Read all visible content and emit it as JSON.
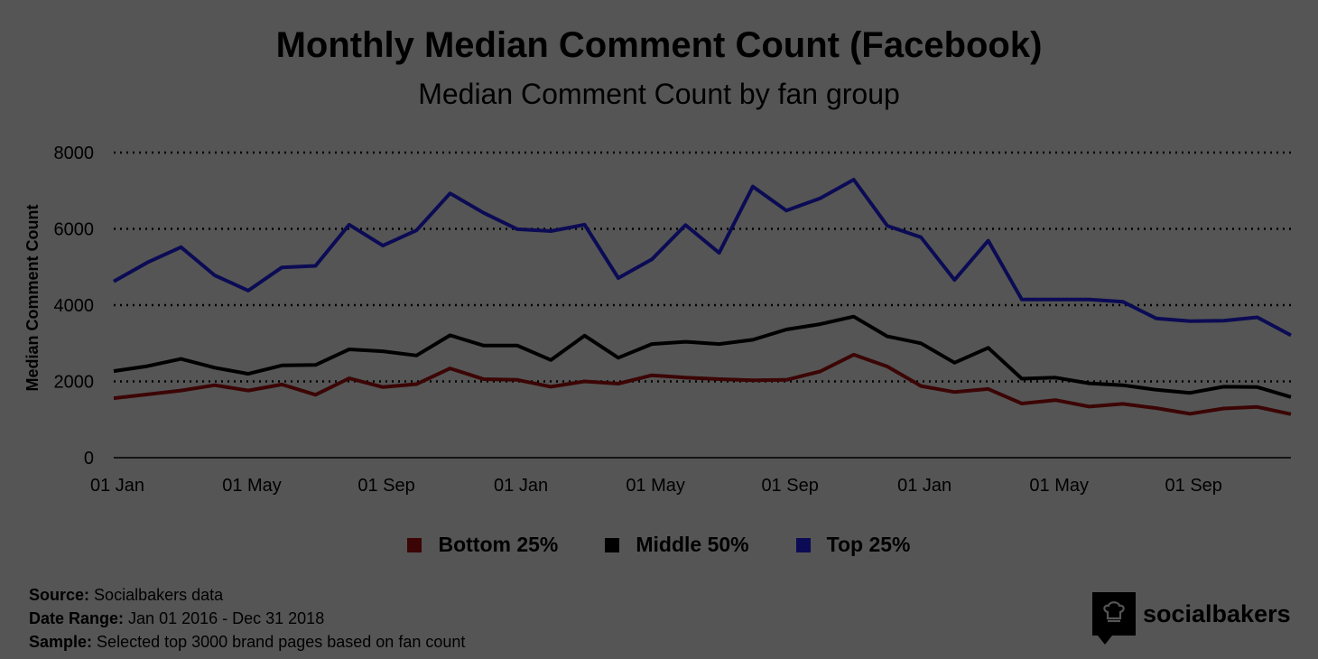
{
  "header": {
    "title": "Monthly Median Comment Count (Facebook)",
    "subtitle": "Median Comment Count by fan group"
  },
  "chart_data": {
    "type": "line",
    "title": "Monthly Median Comment Count (Facebook)",
    "subtitle": "Median Comment Count by fan group",
    "xlabel": "",
    "ylabel": "Median Comment Count",
    "ylim": [
      0,
      8000
    ],
    "yticks": [
      0,
      2000,
      4000,
      6000,
      8000
    ],
    "grid": "horizontal dotted",
    "legend_position": "bottom",
    "x_tick_labels": [
      "01 Jan",
      "01 May",
      "01 Sep",
      "01 Jan",
      "01 May",
      "01 Sep",
      "01 Jan",
      "01 May",
      "01 Sep"
    ],
    "x_tick_indices": [
      0,
      4,
      8,
      12,
      16,
      20,
      24,
      28,
      32
    ],
    "x": [
      "2016-01",
      "2016-02",
      "2016-03",
      "2016-04",
      "2016-05",
      "2016-06",
      "2016-07",
      "2016-08",
      "2016-09",
      "2016-10",
      "2016-11",
      "2016-12",
      "2017-01",
      "2017-02",
      "2017-03",
      "2017-04",
      "2017-05",
      "2017-06",
      "2017-07",
      "2017-08",
      "2017-09",
      "2017-10",
      "2017-11",
      "2017-12",
      "2018-01",
      "2018-02",
      "2018-03",
      "2018-04",
      "2018-05",
      "2018-06",
      "2018-07",
      "2018-08",
      "2018-09",
      "2018-10",
      "2018-11",
      "2018-12"
    ],
    "series": [
      {
        "name": "Bottom 25%",
        "color": "#3c0505",
        "values": [
          1560,
          1660,
          1760,
          1900,
          1760,
          1920,
          1650,
          2080,
          1850,
          1930,
          2340,
          2060,
          2040,
          1860,
          2000,
          1940,
          2160,
          2100,
          2060,
          2030,
          2040,
          2260,
          2700,
          2390,
          1880,
          1720,
          1800,
          1420,
          1510,
          1340,
          1410,
          1300,
          1150,
          1290,
          1330,
          1140
        ]
      },
      {
        "name": "Middle 50%",
        "color": "#000000",
        "values": [
          2270,
          2400,
          2590,
          2360,
          2200,
          2420,
          2430,
          2840,
          2790,
          2680,
          3210,
          2940,
          2940,
          2560,
          3200,
          2620,
          2980,
          3040,
          2980,
          3090,
          3360,
          3500,
          3700,
          3180,
          3000,
          2490,
          2880,
          2070,
          2100,
          1950,
          1900,
          1780,
          1700,
          1860,
          1850,
          1590
        ]
      },
      {
        "name": "Top 25%",
        "color": "#0b0b55",
        "values": [
          4620,
          5120,
          5520,
          4780,
          4380,
          4990,
          5030,
          6110,
          5560,
          5960,
          6930,
          6420,
          5990,
          5940,
          6110,
          4710,
          5200,
          6100,
          5370,
          7110,
          6480,
          6800,
          7290,
          6080,
          5780,
          4660,
          5690,
          4150,
          4150,
          4150,
          4090,
          3650,
          3580,
          3590,
          3680,
          3210
        ]
      }
    ]
  },
  "footer": {
    "source_label": "Source:",
    "source_value": "Socialbakers data",
    "date_label": "Date Range:",
    "date_value": "Jan 01 2016 - Dec 31 2018",
    "sample_label": "Sample:",
    "sample_value": "Selected top 3000 brand pages based on fan count"
  },
  "brand": {
    "name": "socialbakers",
    "icon": "chef-hat-icon"
  }
}
